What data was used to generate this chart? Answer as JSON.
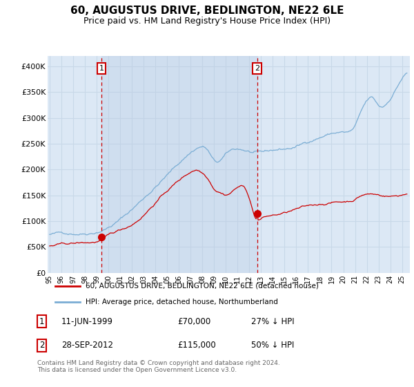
{
  "title": "60, AUGUSTUS DRIVE, BEDLINGTON, NE22 6LE",
  "subtitle": "Price paid vs. HM Land Registry's House Price Index (HPI)",
  "title_fontsize": 11,
  "subtitle_fontsize": 9,
  "background_color": "#ffffff",
  "plot_bg_color": "#dce8f5",
  "grid_color": "#c8d8e8",
  "ylim": [
    0,
    420000
  ],
  "yticks": [
    0,
    50000,
    100000,
    150000,
    200000,
    250000,
    300000,
    350000,
    400000
  ],
  "ytick_labels": [
    "£0",
    "£50K",
    "£100K",
    "£150K",
    "£200K",
    "£250K",
    "£300K",
    "£350K",
    "£400K"
  ],
  "red_line_color": "#cc0000",
  "blue_line_color": "#7aadd4",
  "vline_color": "#cc0000",
  "shade_color": "#c8d8f0",
  "marker1_year": 1999,
  "marker1_month": 6,
  "marker1_price": 70000,
  "marker2_year": 2012,
  "marker2_month": 9,
  "marker2_price": 115000,
  "legend_line1": "60, AUGUSTUS DRIVE, BEDLINGTON, NE22 6LE (detached house)",
  "legend_line2": "HPI: Average price, detached house, Northumberland",
  "footnote": "Contains HM Land Registry data © Crown copyright and database right 2024.\nThis data is licensed under the Open Government Licence v3.0.",
  "start_year": 1995,
  "start_month": 1,
  "end_year": 2025,
  "end_month": 6
}
